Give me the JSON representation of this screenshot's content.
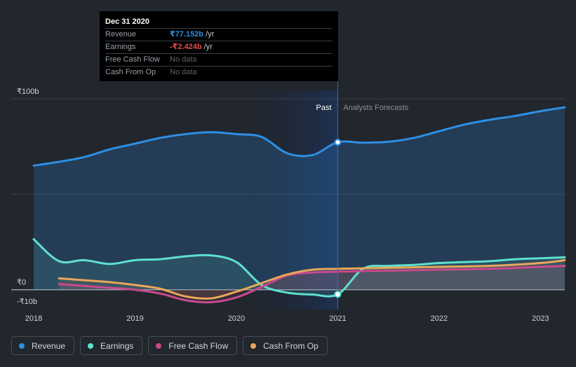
{
  "tooltip": {
    "date": "Dec 31 2020",
    "rows": [
      {
        "label": "Revenue",
        "value": "₹77.152b",
        "unit": "/yr",
        "color": "#2d8fe4"
      },
      {
        "label": "Earnings",
        "value": "-₹2.424b",
        "unit": "/yr",
        "color": "#e84b4b"
      },
      {
        "label": "Free Cash Flow",
        "value": "No data",
        "unit": ""
      },
      {
        "label": "Cash From Op",
        "value": "No data",
        "unit": ""
      }
    ]
  },
  "chart_data": {
    "type": "line",
    "y_axis_labels": [
      "₹100b",
      "₹0",
      "-₹10b"
    ],
    "ylim": [
      -10,
      100
    ],
    "xlim": [
      2018,
      2023.24
    ],
    "x_ticks": [
      2018,
      2019,
      2020,
      2021,
      2022,
      2023
    ],
    "x_tick_labels": [
      "2018",
      "2019",
      "2020",
      "2021",
      "2022",
      "2023"
    ],
    "divider_x": 2021,
    "past_label": "Past",
    "forecast_label": "Analysts Forecasts",
    "series": [
      {
        "name": "Revenue",
        "color": "#2d8fe4",
        "x": [
          2018,
          2018.25,
          2018.5,
          2018.75,
          2019,
          2019.25,
          2019.5,
          2019.75,
          2020,
          2020.25,
          2020.5,
          2020.75,
          2021,
          2021.25,
          2021.5,
          2021.75,
          2022,
          2022.25,
          2022.5,
          2022.75,
          2023,
          2023.24
        ],
        "values": [
          65,
          67,
          69.5,
          73.5,
          76.5,
          79.5,
          81.5,
          82.5,
          81.5,
          80,
          71.5,
          70.5,
          77.2,
          77,
          77.5,
          79.5,
          83,
          86.5,
          89,
          91,
          93.5,
          95.5
        ]
      },
      {
        "name": "Earnings",
        "color": "#5fe0cf",
        "x": [
          2018,
          2018.25,
          2018.5,
          2018.75,
          2019,
          2019.25,
          2019.5,
          2019.75,
          2020,
          2020.25,
          2020.5,
          2020.75,
          2021,
          2021.25,
          2021.5,
          2021.75,
          2022,
          2022.25,
          2022.5,
          2022.75,
          2023,
          2023.24
        ],
        "values": [
          26.5,
          15,
          15.5,
          13.5,
          15.5,
          16,
          17.5,
          18,
          14.5,
          2.5,
          -1.5,
          -2.5,
          -2.4,
          11,
          12.5,
          13,
          14,
          14.5,
          15,
          16,
          16.5,
          17
        ]
      },
      {
        "name": "Free Cash Flow",
        "color": "#c84a8c",
        "x": [
          2018.25,
          2018.5,
          2018.75,
          2019,
          2019.25,
          2019.5,
          2019.75,
          2020,
          2020.25,
          2020.5,
          2020.75,
          2021,
          2021.5,
          2022,
          2022.5,
          2023,
          2023.24
        ],
        "values": [
          3,
          2,
          1,
          0,
          -2,
          -5.5,
          -6.5,
          -4,
          1.5,
          7.5,
          9,
          9.5,
          10,
          10.5,
          11,
          12,
          12.5
        ]
      },
      {
        "name": "Cash From Op",
        "color": "#e8a75a",
        "x": [
          2018.25,
          2018.5,
          2018.75,
          2019,
          2019.25,
          2019.5,
          2019.75,
          2020,
          2020.25,
          2020.5,
          2020.75,
          2021,
          2021.5,
          2022,
          2022.5,
          2023,
          2023.24
        ],
        "values": [
          6,
          5,
          4,
          2.5,
          0.5,
          -3.5,
          -4.5,
          -1,
          3.5,
          8,
          10.5,
          11,
          11.5,
          12,
          12.5,
          14,
          15.5
        ]
      }
    ],
    "markers": [
      {
        "series": "Revenue",
        "x": 2021,
        "value": 77.2
      },
      {
        "series": "Earnings",
        "x": 2021,
        "value": -2.4
      }
    ]
  },
  "legend": [
    {
      "label": "Revenue",
      "color": "#2d8fe4"
    },
    {
      "label": "Earnings",
      "color": "#5fe0cf"
    },
    {
      "label": "Free Cash Flow",
      "color": "#c84a8c"
    },
    {
      "label": "Cash From Op",
      "color": "#e8a75a"
    }
  ]
}
